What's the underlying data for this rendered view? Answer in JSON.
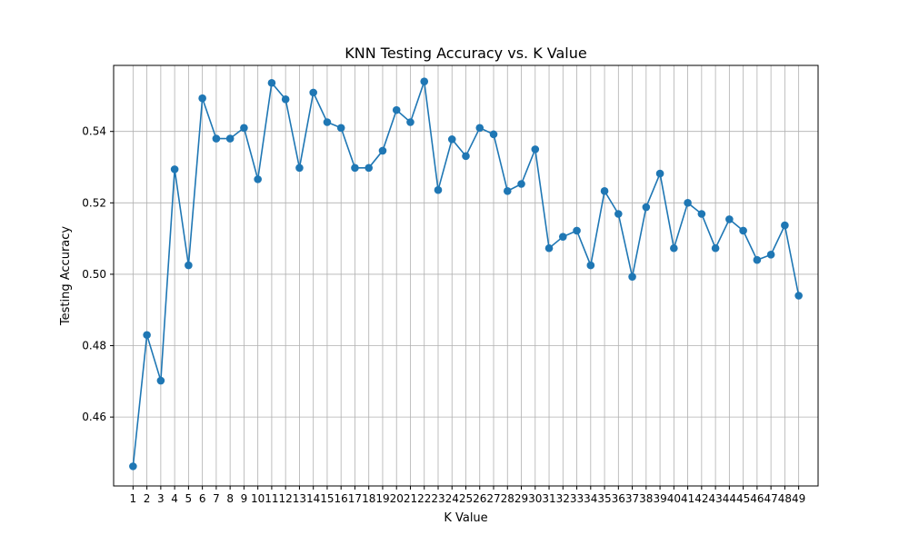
{
  "chart_data": {
    "type": "line",
    "title": "KNN Testing Accuracy vs. K Value",
    "xlabel": "K Value",
    "ylabel": "Testing Accuracy",
    "x": [
      1,
      2,
      3,
      4,
      5,
      6,
      7,
      8,
      9,
      10,
      11,
      12,
      13,
      14,
      15,
      16,
      17,
      18,
      19,
      20,
      21,
      22,
      23,
      24,
      25,
      26,
      27,
      28,
      29,
      30,
      31,
      32,
      33,
      34,
      35,
      36,
      37,
      38,
      39,
      40,
      41,
      42,
      43,
      44,
      45,
      46,
      47,
      48,
      49
    ],
    "y_ticks": [
      0.46,
      0.48,
      0.5,
      0.52,
      0.54
    ],
    "y_tick_labels": [
      "0.46",
      "0.48",
      "0.50",
      "0.52",
      "0.54"
    ],
    "xlim": [
      -0.4,
      50.4
    ],
    "ylim": [
      0.4407,
      0.5585
    ],
    "grid": true,
    "marker": "circle",
    "series": [
      {
        "color": "#1f77b4",
        "values": [
          0.4462,
          0.483,
          0.4702,
          0.5294,
          0.5025,
          0.5493,
          0.538,
          0.538,
          0.541,
          0.5266,
          0.5536,
          0.549,
          0.5298,
          0.5509,
          0.5426,
          0.541,
          0.5298,
          0.5298,
          0.5346,
          0.546,
          0.5426,
          0.554,
          0.5236,
          0.5378,
          0.5331,
          0.541,
          0.5392,
          0.5233,
          0.5253,
          0.535,
          0.5073,
          0.5105,
          0.5122,
          0.5025,
          0.5233,
          0.5169,
          0.4993,
          0.5188,
          0.5282,
          0.5073,
          0.52,
          0.5169,
          0.5073,
          0.5154,
          0.5122,
          0.504,
          0.5055,
          0.5137,
          0.494
        ]
      }
    ]
  }
}
